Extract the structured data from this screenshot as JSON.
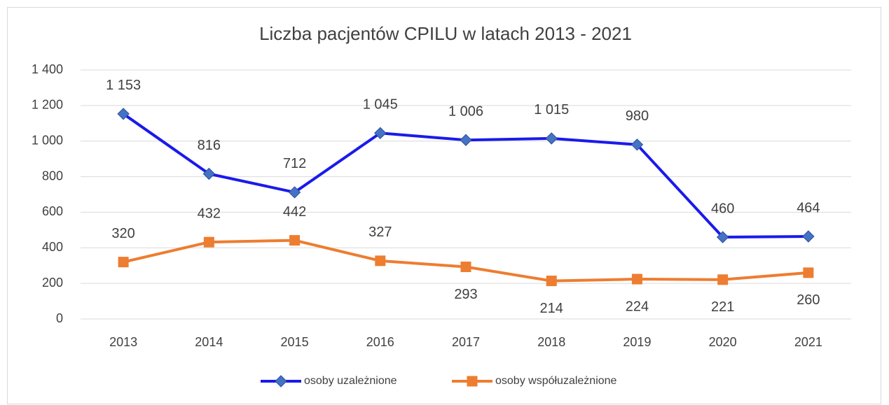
{
  "chart_data": {
    "type": "line",
    "title": "Liczba pacjentów CPILU w latach 2013 - 2021",
    "categories": [
      "2013",
      "2014",
      "2015",
      "2016",
      "2017",
      "2018",
      "2019",
      "2020",
      "2021"
    ],
    "series": [
      {
        "name": "osoby uzależnione",
        "color": "#1a1aeb",
        "marker": "diamond",
        "marker_color": "#4472c4",
        "values": [
          1153,
          816,
          712,
          1045,
          1006,
          1015,
          980,
          460,
          464
        ],
        "value_labels": [
          "1 153",
          "816",
          "712",
          "1 045",
          "1 006",
          "1 015",
          "980",
          "460",
          "464"
        ]
      },
      {
        "name": "osoby współuzależnione",
        "color": "#ed7d31",
        "marker": "square",
        "marker_color": "#ed7d31",
        "values": [
          320,
          432,
          442,
          327,
          293,
          214,
          224,
          221,
          260
        ]
      }
    ],
    "ylim": [
      0,
      1400
    ],
    "yticks": [
      0,
      200,
      400,
      600,
      800,
      {
        "value": 1000,
        "label": "1 000"
      },
      {
        "value": 1200,
        "label": "1 200"
      },
      {
        "value": 1400,
        "label": "1 400"
      }
    ],
    "grid": true,
    "legend": "bottom"
  }
}
